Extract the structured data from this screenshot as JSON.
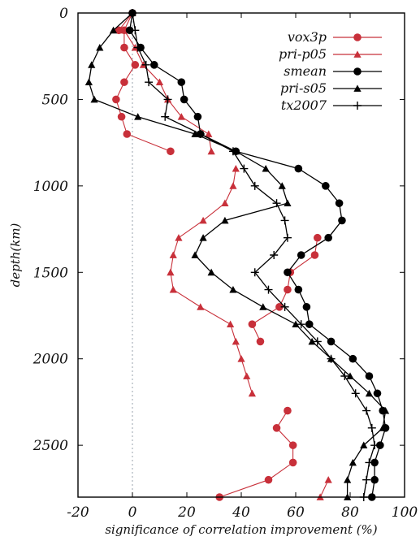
{
  "chart_data": {
    "type": "line",
    "xlabel": "significance of correlation improvement (%)",
    "ylabel": "depth(km)",
    "xlim": [
      -20,
      100
    ],
    "ylim": [
      0,
      2800
    ],
    "y_inverted": true,
    "x_ticks": [
      -20,
      0,
      20,
      40,
      60,
      80,
      100
    ],
    "y_ticks": [
      0,
      500,
      1000,
      1500,
      2000,
      2500
    ],
    "zero_reference_line": "dotted",
    "grid": false,
    "legend_position": "top-right",
    "series": [
      {
        "name": "vox3p",
        "color": "#c8303a",
        "marker": "circle",
        "points": [
          [
            0,
            0
          ],
          [
            -5,
            100
          ],
          [
            -3,
            100
          ],
          [
            -3,
            200
          ],
          [
            1,
            300
          ],
          [
            -3,
            400
          ],
          [
            -6,
            500
          ],
          [
            -4,
            600
          ],
          [
            -2,
            700
          ],
          [
            14,
            800
          ],
          [
            null,
            null
          ],
          [
            68,
            1300
          ],
          [
            67,
            1400
          ],
          [
            58,
            1500
          ],
          [
            57,
            1600
          ],
          [
            54,
            1700
          ],
          [
            44,
            1800
          ],
          [
            47,
            1900
          ],
          [
            null,
            null
          ],
          [
            57,
            2300
          ],
          [
            53,
            2400
          ],
          [
            59,
            2500
          ],
          [
            59,
            2600
          ],
          [
            50,
            2700
          ],
          [
            32,
            2800
          ]
        ]
      },
      {
        "name": "pri-p05",
        "color": "#c8303a",
        "marker": "triangle",
        "points": [
          [
            0,
            0
          ],
          [
            -3,
            100
          ],
          [
            1,
            200
          ],
          [
            4,
            300
          ],
          [
            10,
            400
          ],
          [
            13,
            500
          ],
          [
            18,
            600
          ],
          [
            28,
            700
          ],
          [
            29,
            800
          ],
          [
            null,
            null
          ],
          [
            38,
            900
          ],
          [
            37,
            1000
          ],
          [
            34,
            1100
          ],
          [
            26,
            1200
          ],
          [
            17,
            1300
          ],
          [
            15,
            1400
          ],
          [
            14,
            1500
          ],
          [
            15,
            1600
          ],
          [
            25,
            1700
          ],
          [
            36,
            1800
          ],
          [
            38,
            1900
          ],
          [
            40,
            2000
          ],
          [
            42,
            2100
          ],
          [
            44,
            2200
          ],
          [
            null,
            null
          ],
          [
            72,
            2700
          ],
          [
            69,
            2800
          ]
        ]
      },
      {
        "name": "smean",
        "color": "#000000",
        "marker": "circle",
        "points": [
          [
            0,
            0
          ],
          [
            -1,
            100
          ],
          [
            3,
            200
          ],
          [
            8,
            300
          ],
          [
            18,
            400
          ],
          [
            19,
            500
          ],
          [
            24,
            600
          ],
          [
            25,
            700
          ],
          [
            38,
            800
          ],
          [
            61,
            900
          ],
          [
            71,
            1000
          ],
          [
            76,
            1100
          ],
          [
            77,
            1200
          ],
          [
            72,
            1300
          ],
          [
            62,
            1400
          ],
          [
            57,
            1500
          ],
          [
            61,
            1600
          ],
          [
            64,
            1700
          ],
          [
            65,
            1800
          ],
          [
            73,
            1900
          ],
          [
            81,
            2000
          ],
          [
            87,
            2100
          ],
          [
            90,
            2200
          ],
          [
            92,
            2300
          ],
          [
            93,
            2400
          ],
          [
            91,
            2500
          ],
          [
            89,
            2600
          ],
          [
            89,
            2700
          ],
          [
            88,
            2800
          ]
        ]
      },
      {
        "name": "pri-s05",
        "color": "#000000",
        "marker": "triangle",
        "points": [
          [
            0,
            0
          ],
          [
            -7,
            100
          ],
          [
            -12,
            200
          ],
          [
            -15,
            300
          ],
          [
            -16,
            400
          ],
          [
            -14,
            500
          ],
          [
            2,
            600
          ],
          [
            23,
            700
          ],
          [
            38,
            800
          ],
          [
            49,
            900
          ],
          [
            55,
            1000
          ],
          [
            57,
            1100
          ],
          [
            34,
            1200
          ],
          [
            26,
            1300
          ],
          [
            23,
            1400
          ],
          [
            29,
            1500
          ],
          [
            37,
            1600
          ],
          [
            48,
            1700
          ],
          [
            60,
            1800
          ],
          [
            66,
            1900
          ],
          [
            73,
            2000
          ],
          [
            80,
            2100
          ],
          [
            87,
            2200
          ],
          [
            93,
            2300
          ],
          [
            92,
            2400
          ],
          [
            85,
            2500
          ],
          [
            81,
            2600
          ],
          [
            79,
            2700
          ],
          [
            79,
            2800
          ]
        ]
      },
      {
        "name": "tx2007",
        "color": "#000000",
        "marker": "plus",
        "points": [
          [
            0,
            0
          ],
          [
            1,
            100
          ],
          [
            2,
            200
          ],
          [
            5,
            300
          ],
          [
            6,
            400
          ],
          [
            13,
            500
          ],
          [
            12,
            600
          ],
          [
            25,
            700
          ],
          [
            37,
            800
          ],
          [
            41,
            900
          ],
          [
            45,
            1000
          ],
          [
            53,
            1100
          ],
          [
            56,
            1200
          ],
          [
            57,
            1300
          ],
          [
            52,
            1400
          ],
          [
            45,
            1500
          ],
          [
            50,
            1600
          ],
          [
            56,
            1700
          ],
          [
            62,
            1800
          ],
          [
            68,
            1900
          ],
          [
            73,
            2000
          ],
          [
            78,
            2100
          ],
          [
            82,
            2200
          ],
          [
            86,
            2300
          ],
          [
            88,
            2400
          ],
          [
            89,
            2500
          ],
          [
            87,
            2600
          ],
          [
            86,
            2700
          ],
          [
            85,
            2800
          ]
        ]
      }
    ]
  }
}
